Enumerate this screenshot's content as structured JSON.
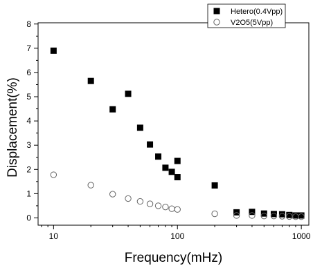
{
  "chart_data": {
    "type": "scatter",
    "title": "",
    "xlabel": "Frequency(mHz)",
    "ylabel": "Displacement(%)",
    "xscale": "log",
    "xlim": [
      7.5,
      1150
    ],
    "ylim": [
      -0.3,
      8.05
    ],
    "x_ticks": [
      10,
      100,
      1000
    ],
    "x_tick_labels": [
      "10",
      "100",
      "1000"
    ],
    "y_ticks": [
      0,
      1,
      2,
      3,
      4,
      5,
      6,
      7,
      8
    ],
    "y_tick_labels": [
      "0",
      "1",
      "2",
      "3",
      "4",
      "5",
      "6",
      "7",
      "8"
    ],
    "grid": false,
    "legend_position": "top-right",
    "series": [
      {
        "name": "Hetero(0.4Vpp)",
        "marker": "filled-square",
        "color": "#000000",
        "x": [
          10,
          20,
          30,
          40,
          50,
          60,
          70,
          80,
          90,
          100,
          100,
          200,
          300,
          400,
          500,
          600,
          700,
          800,
          900,
          1000
        ],
        "y": [
          6.9,
          5.65,
          4.48,
          5.12,
          3.72,
          3.03,
          2.53,
          2.07,
          1.9,
          2.35,
          1.68,
          1.34,
          0.23,
          0.25,
          0.18,
          0.16,
          0.15,
          0.12,
          0.1,
          0.1
        ]
      },
      {
        "name": "V2O5(5Vpp)",
        "marker": "open-circle",
        "color": "#000000",
        "x": [
          10,
          20,
          30,
          40,
          50,
          60,
          70,
          80,
          90,
          100,
          200,
          300,
          400,
          500,
          600,
          700,
          800,
          900,
          1000
        ],
        "y": [
          1.78,
          1.35,
          0.98,
          0.8,
          0.68,
          0.58,
          0.5,
          0.45,
          0.38,
          0.35,
          0.17,
          0.1,
          0.1,
          0.08,
          0.08,
          0.07,
          0.06,
          0.05,
          0.05
        ]
      }
    ]
  }
}
